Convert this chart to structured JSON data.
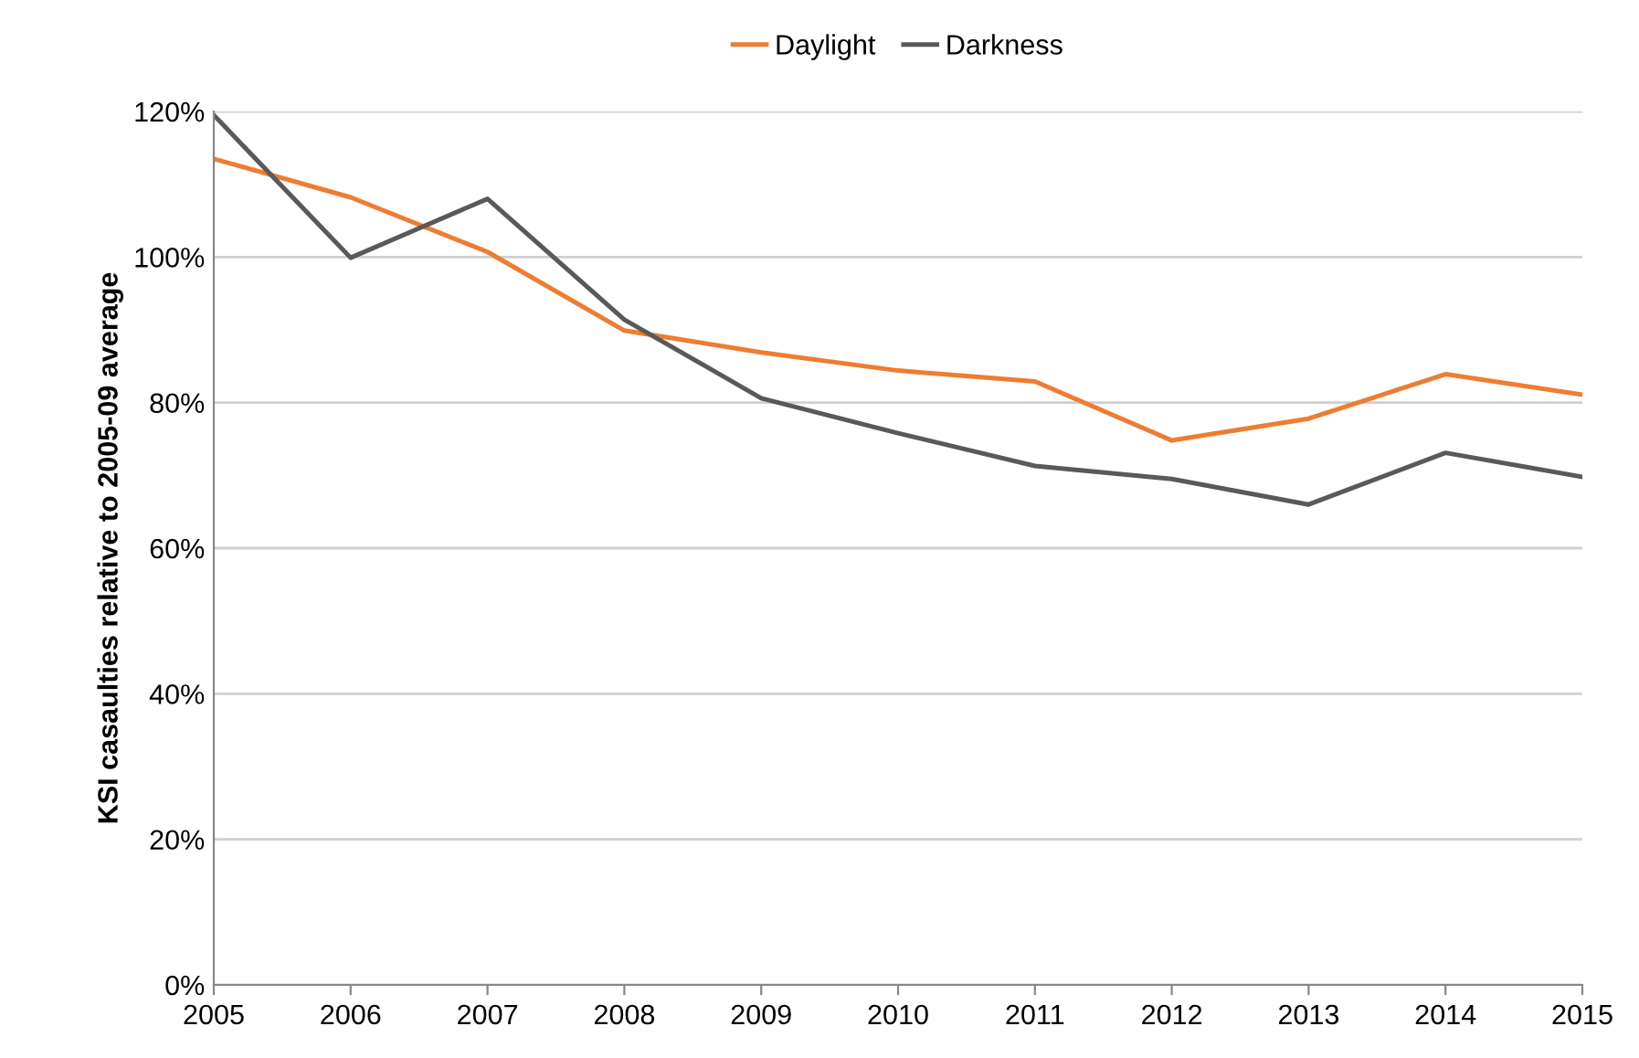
{
  "chart_data": {
    "type": "line",
    "ylabel": "KSI casaulties relative to 2005-09 average",
    "x": [
      2005,
      2006,
      2007,
      2008,
      2009,
      2010,
      2011,
      2012,
      2013,
      2014,
      2015
    ],
    "series": [
      {
        "name": "Daylight",
        "color": "#ed7d31",
        "values": [
          113.5,
          108.2,
          100.7,
          89.9,
          86.9,
          84.4,
          82.9,
          74.8,
          77.8,
          83.9,
          81.1
        ]
      },
      {
        "name": "Darkness",
        "color": "#595959",
        "values": [
          119.5,
          99.9,
          108,
          91.4,
          80.6,
          75.8,
          71.3,
          69.5,
          66,
          73.1,
          69.8
        ]
      }
    ],
    "xlim": [
      2005,
      2015
    ],
    "xticks": [
      2005,
      2006,
      2007,
      2008,
      2009,
      2010,
      2011,
      2012,
      2013,
      2014,
      2015
    ],
    "ylim": [
      0,
      120
    ],
    "yticks": [
      {
        "value": 0,
        "label": "0%"
      },
      {
        "value": 20,
        "label": "20%"
      },
      {
        "value": 40,
        "label": "40%"
      },
      {
        "value": 60,
        "label": "60%"
      },
      {
        "value": 80,
        "label": "80%"
      },
      {
        "value": 100,
        "label": "100%"
      },
      {
        "value": 120,
        "label": "120%"
      }
    ],
    "grid": "y",
    "legend": "top",
    "marker": "none",
    "line_style": "solid"
  }
}
